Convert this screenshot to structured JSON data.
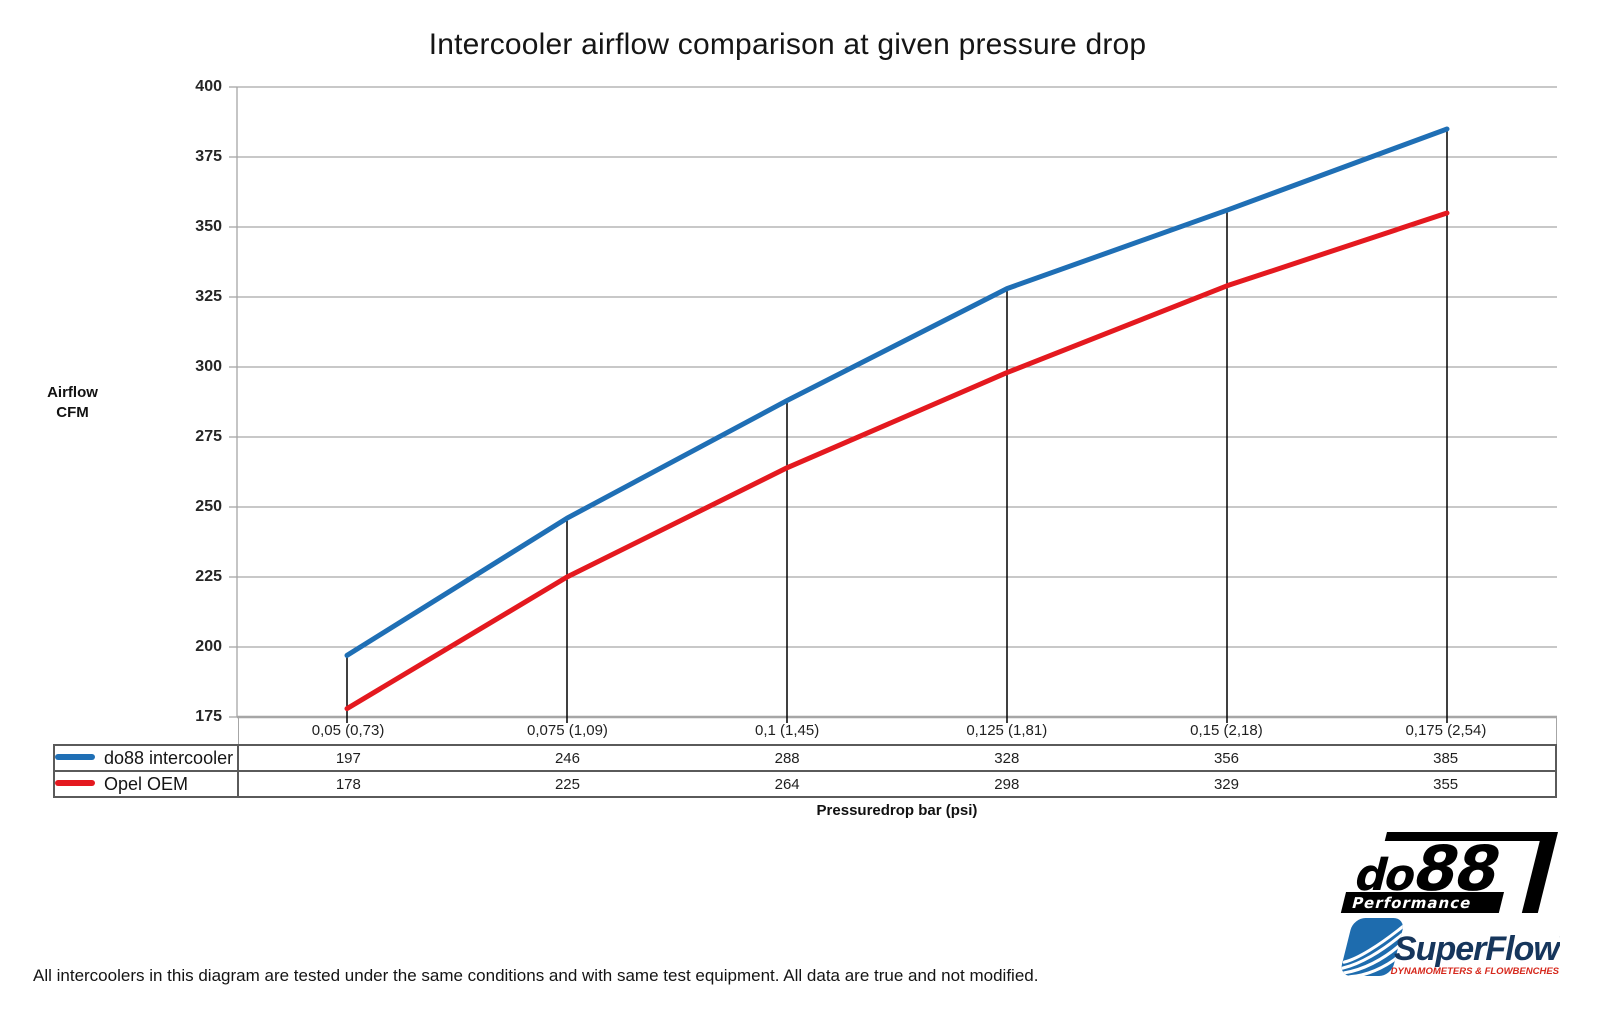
{
  "page": {
    "footnote": "All intercoolers in this diagram are tested under the same conditions and with same test equipment. All data are true and not modified."
  },
  "chart_data": {
    "type": "line",
    "title": "Intercooler airflow comparison at given pressure drop",
    "xlabel": "Pressuredrop bar (psi)",
    "ylabel_lines": [
      "Airflow",
      "CFM"
    ],
    "categories": [
      "0,05 (0,73)",
      "0,075 (1,09)",
      "0,1 (1,45)",
      "0,125 (1,81)",
      "0,15 (2,18)",
      "0,175 (2,54)"
    ],
    "series": [
      {
        "name": "do88 intercooler",
        "color": "#1f6fb5",
        "values": [
          197,
          246,
          288,
          328,
          356,
          385
        ]
      },
      {
        "name": "Opel OEM",
        "color": "#e4191f",
        "values": [
          178,
          225,
          264,
          298,
          329,
          355
        ]
      }
    ],
    "ylim": [
      175,
      400
    ],
    "ytick_step": 25,
    "grid": true,
    "droplines": true,
    "legend_position": "table-left"
  },
  "logos": {
    "do88": {
      "part1": "do",
      "part2": "88",
      "tagline": "Performance"
    },
    "superflow": {
      "name": "SuperFlow",
      "trademark": "™",
      "tagline": "DYNAMOMETERS & FLOWBENCHES"
    }
  },
  "colors": {
    "grid": "#a6a6a6",
    "axis": "#9b9b9b",
    "table_border": "#5a5a5a",
    "dropline": "#000000",
    "do88_blue": "#1f6fb5",
    "oem_red": "#e4191f",
    "superflow_navy": "#16365c",
    "superflow_blue": "#1e6cae",
    "superflow_red": "#d6281c"
  }
}
